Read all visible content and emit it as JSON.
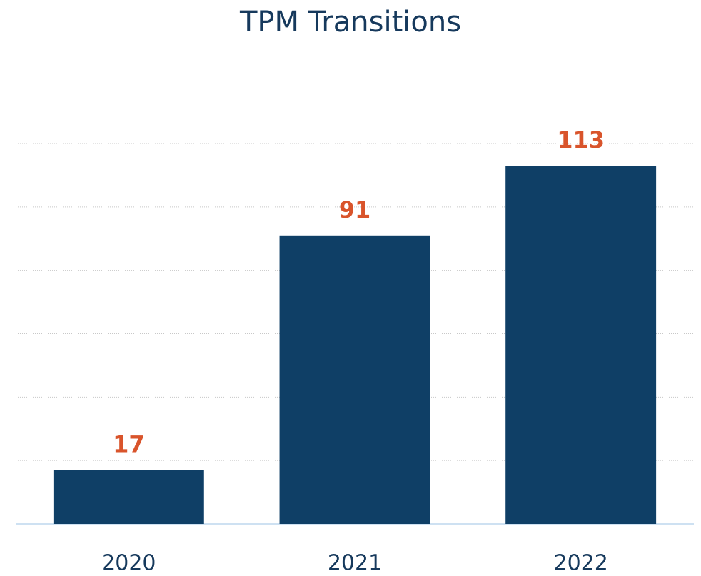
{
  "chart_data": {
    "type": "bar",
    "title": "TPM Transitions",
    "categories": [
      "2020",
      "2021",
      "2022"
    ],
    "values": [
      17,
      91,
      113
    ],
    "color": "#0f3f66",
    "label_color": "#d9542b",
    "ylim": [
      0,
      120
    ],
    "yticks": [
      0,
      20,
      40,
      60,
      80,
      100,
      120
    ],
    "grid": true
  }
}
